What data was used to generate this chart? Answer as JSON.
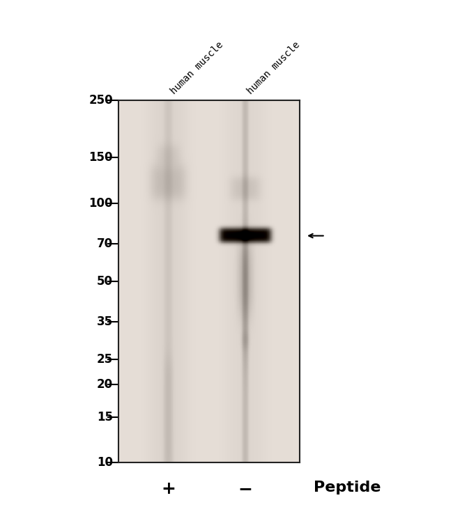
{
  "fig_width": 6.5,
  "fig_height": 7.38,
  "dpi": 100,
  "bg_color": "#ffffff",
  "blot_bg": [
    230,
    222,
    215
  ],
  "mw_markers": [
    250,
    150,
    100,
    70,
    50,
    35,
    25,
    20,
    15,
    10
  ],
  "lane_labels": [
    "human muscle",
    "human muscle"
  ],
  "peptide_labels": [
    "+",
    "-"
  ],
  "peptide_text": "Peptide",
  "mw_fontsize": 12,
  "label_fontsize": 10,
  "peptide_fontsize": 16,
  "arrow_mw": 75
}
